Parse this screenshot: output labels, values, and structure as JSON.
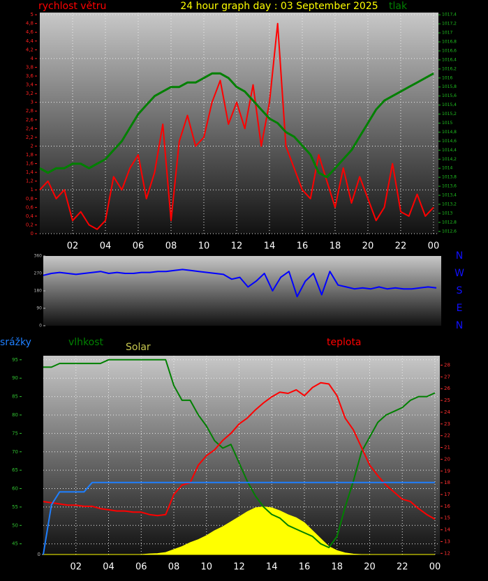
{
  "chart_data": [
    {
      "type": "line",
      "title": "24 hour graph day : 03 September 2025",
      "grid": true,
      "x": [
        0,
        0.5,
        1,
        1.5,
        2,
        2.5,
        3,
        3.5,
        4,
        4.5,
        5,
        5.5,
        6,
        6.5,
        7,
        7.5,
        8,
        8.5,
        9,
        9.5,
        10,
        10.5,
        11,
        11.5,
        12,
        12.5,
        13,
        13.5,
        14,
        14.5,
        15,
        15.5,
        16,
        16.5,
        17,
        17.5,
        18,
        18.5,
        19,
        19.5,
        20,
        20.5,
        21,
        21.5,
        22,
        22.5,
        23,
        23.5,
        24
      ],
      "xlim": [
        0,
        24.3
      ],
      "xticks": [
        {
          "value": 2,
          "label": "02"
        },
        {
          "value": 4,
          "label": "04"
        },
        {
          "value": 6,
          "label": "06"
        },
        {
          "value": 8,
          "label": "08"
        },
        10,
        12,
        14,
        16,
        18,
        20,
        22,
        {
          "value": 24,
          "label": "00"
        }
      ],
      "ylim": [
        0,
        5.05
      ],
      "yticks": [
        0,
        {
          "value": 0.2,
          "label": "0,2"
        },
        {
          "value": 0.4,
          "label": "0,4"
        },
        {
          "value": 0.6,
          "label": "0,6"
        },
        {
          "value": 0.8,
          "label": "0,8"
        },
        1,
        {
          "value": 1.2,
          "label": "1,2"
        },
        {
          "value": 1.4,
          "label": "1,4"
        },
        {
          "value": 1.6,
          "label": "1,6"
        },
        {
          "value": 1.8,
          "label": "1,8"
        },
        2,
        {
          "value": 2.2,
          "label": "2,2"
        },
        {
          "value": 2.4,
          "label": "2,4"
        },
        {
          "value": 2.6,
          "label": "2,6"
        },
        {
          "value": 2.8,
          "label": "2,8"
        },
        3,
        {
          "value": 3.2,
          "label": "3,2"
        },
        {
          "value": 3.4,
          "label": "3,4"
        },
        {
          "value": 3.6,
          "label": "3,6"
        },
        {
          "value": 3.8,
          "label": "3,8"
        },
        4,
        {
          "value": 4.2,
          "label": "4,2"
        },
        {
          "value": 4.4,
          "label": "4,4"
        },
        {
          "value": 4.6,
          "label": "4,6"
        },
        {
          "value": 4.8,
          "label": "4,8"
        },
        5
      ],
      "y2lim": [
        1012.55,
        1017.45
      ],
      "y2ticks": [
        {
          "value": 1012.6,
          "label": "1012,6"
        },
        {
          "value": 1012.8,
          "label": "1012,8"
        },
        1013,
        {
          "value": 1013.2,
          "label": "1013,2"
        },
        {
          "value": 1013.4,
          "label": "1013,4"
        },
        {
          "value": 1013.6,
          "label": "1013,6"
        },
        {
          "value": 1013.8,
          "label": "1013,8"
        },
        1014,
        {
          "value": 1014.2,
          "label": "1014,2"
        },
        {
          "value": 1014.4,
          "label": "1014,4"
        },
        {
          "value": 1014.6,
          "label": "1014,6"
        },
        {
          "value": 1014.8,
          "label": "1014,8"
        },
        1015,
        {
          "value": 1015.2,
          "label": "1015,2"
        },
        {
          "value": 1015.4,
          "label": "1015,4"
        },
        {
          "value": 1015.6,
          "label": "1015,6"
        },
        {
          "value": 1015.8,
          "label": "1015,8"
        },
        1016,
        {
          "value": 1016.2,
          "label": "1016,2"
        },
        {
          "value": 1016.4,
          "label": "1016,4"
        },
        {
          "value": 1016.6,
          "label": "1016,6"
        },
        {
          "value": 1016.8,
          "label": "1016,8"
        },
        1017,
        {
          "value": 1017.2,
          "label": "1017,2"
        },
        {
          "value": 1017.4,
          "label": "1017,4"
        }
      ],
      "series": [
        {
          "name": "rychlost větru",
          "color": "#ff0000",
          "values": [
            1.0,
            1.2,
            0.8,
            1.0,
            0.3,
            0.5,
            0.2,
            0.1,
            0.3,
            1.3,
            1.0,
            1.5,
            1.8,
            0.8,
            1.4,
            2.5,
            0.3,
            2.1,
            2.7,
            2.0,
            2.2,
            3.0,
            3.5,
            2.5,
            3.0,
            2.4,
            3.4,
            2.0,
            3.0,
            4.8,
            2.0,
            1.5,
            1.0,
            0.8,
            1.8,
            1.2,
            0.6,
            1.5,
            0.7,
            1.3,
            0.8,
            0.3,
            0.6,
            1.6,
            0.5,
            0.4,
            0.9,
            0.4,
            0.6
          ]
        },
        {
          "name": "tlak",
          "color": "#008000",
          "axis": "y2",
          "values": [
            1014.0,
            1013.9,
            1014.0,
            1014.0,
            1014.1,
            1014.1,
            1014.0,
            1014.1,
            1014.2,
            1014.4,
            1014.6,
            1014.9,
            1015.2,
            1015.4,
            1015.6,
            1015.7,
            1015.8,
            1015.8,
            1015.9,
            1015.9,
            1016.0,
            1016.1,
            1016.1,
            1016.0,
            1015.8,
            1015.7,
            1015.5,
            1015.3,
            1015.1,
            1015.0,
            1014.8,
            1014.7,
            1014.5,
            1014.3,
            1013.9,
            1013.8,
            1014.0,
            1014.2,
            1014.4,
            1014.7,
            1015.0,
            1015.3,
            1015.5,
            1015.6,
            1015.7,
            1015.8,
            1015.9,
            1016.0,
            1016.1
          ]
        }
      ]
    },
    {
      "type": "line",
      "grid": false,
      "x": [
        0,
        0.5,
        1,
        1.5,
        2,
        2.5,
        3,
        3.5,
        4,
        4.5,
        5,
        5.5,
        6,
        6.5,
        7,
        7.5,
        8,
        8.5,
        9,
        9.5,
        10,
        10.5,
        11,
        11.5,
        12,
        12.5,
        13,
        13.5,
        14,
        14.5,
        15,
        15.5,
        16,
        16.5,
        17,
        17.5,
        18,
        18.5,
        19,
        19.5,
        20,
        20.5,
        21,
        21.5,
        22,
        22.5,
        23,
        23.5,
        24
      ],
      "xlim": [
        0,
        24.3
      ],
      "ylim": [
        0,
        360
      ],
      "yticks": [
        0,
        90,
        180,
        270,
        360
      ],
      "compass": [
        "N",
        "W",
        "S",
        "E",
        "N"
      ],
      "series": [
        {
          "color": "#0000ff",
          "values": [
            260,
            270,
            275,
            270,
            265,
            270,
            275,
            280,
            270,
            275,
            270,
            270,
            275,
            275,
            280,
            280,
            285,
            290,
            285,
            280,
            275,
            270,
            265,
            240,
            250,
            200,
            230,
            270,
            180,
            250,
            280,
            150,
            230,
            270,
            160,
            280,
            210,
            200,
            190,
            195,
            190,
            200,
            190,
            195,
            190,
            190,
            195,
            200,
            195
          ]
        }
      ]
    },
    {
      "type": "line",
      "grid": true,
      "x": [
        0,
        0.5,
        1,
        1.5,
        2,
        2.5,
        3,
        3.5,
        4,
        4.5,
        5,
        5.5,
        6,
        6.5,
        7,
        7.5,
        8,
        8.5,
        9,
        9.5,
        10,
        10.5,
        11,
        11.5,
        12,
        12.5,
        13,
        13.5,
        14,
        14.5,
        15,
        15.5,
        16,
        16.5,
        17,
        17.5,
        18,
        18.5,
        19,
        19.5,
        20,
        20.5,
        21,
        21.5,
        22,
        22.5,
        23,
        23.5,
        24
      ],
      "xlim": [
        0,
        24.3
      ],
      "xticks": [
        {
          "value": 2,
          "label": "02"
        },
        {
          "value": 4,
          "label": "04"
        },
        {
          "value": 6,
          "label": "06"
        },
        {
          "value": 8,
          "label": "08"
        },
        10,
        12,
        14,
        16,
        18,
        20,
        22,
        {
          "value": 24,
          "label": "00"
        }
      ],
      "ylim": [
        42.1,
        96.1
      ],
      "yticks": [
        45,
        50,
        55,
        60,
        65,
        70,
        75,
        80,
        85,
        90,
        95
      ],
      "y2lim": [
        11.9,
        28.8
      ],
      "y2ticks": [
        12,
        13,
        14,
        15,
        16,
        17,
        18,
        19,
        20,
        21,
        22,
        23,
        24,
        25,
        26,
        27,
        28
      ],
      "y3lim": [
        0,
        4
      ],
      "y3ticks": [
        0
      ],
      "y4lim": [
        0,
        1000
      ],
      "series": [
        {
          "name": "Solar",
          "color": "#ffff00",
          "axis": "y4",
          "style": "area",
          "values": [
            0,
            0,
            0,
            0,
            0,
            0,
            0,
            0,
            0,
            0,
            0,
            0,
            0,
            3,
            5,
            10,
            25,
            40,
            60,
            75,
            95,
            120,
            140,
            165,
            190,
            215,
            235,
            240,
            235,
            220,
            200,
            185,
            160,
            120,
            80,
            40,
            20,
            8,
            2,
            0,
            0,
            0,
            0,
            0,
            0,
            0,
            0,
            0,
            0
          ]
        },
        {
          "name": "vlhkost",
          "color": "#008000",
          "values": [
            93,
            93,
            94,
            94,
            94,
            94,
            94,
            94,
            95,
            95,
            95,
            95,
            95,
            95,
            95,
            95,
            88,
            84,
            84,
            80,
            77,
            73,
            71,
            72,
            67,
            62,
            58,
            55,
            53,
            52,
            50,
            49,
            48,
            47,
            45,
            44,
            47,
            55,
            62,
            70,
            74,
            78,
            80,
            81,
            82,
            84,
            85,
            85,
            86
          ]
        },
        {
          "name": "teplota",
          "color": "#ff0000",
          "axis": "y2",
          "values": [
            16.4,
            16.3,
            16.2,
            16.1,
            16.1,
            16.0,
            16.0,
            15.8,
            15.7,
            15.6,
            15.6,
            15.5,
            15.5,
            15.3,
            15.2,
            15.3,
            17.0,
            17.8,
            18.0,
            19.5,
            20.3,
            20.8,
            21.6,
            22.2,
            23.0,
            23.5,
            24.2,
            24.8,
            25.3,
            25.7,
            25.6,
            25.9,
            25.4,
            26.1,
            26.5,
            26.4,
            25.4,
            23.5,
            22.5,
            21.0,
            19.5,
            18.6,
            17.8,
            17.2,
            16.6,
            16.4,
            15.8,
            15.3,
            14.9
          ]
        },
        {
          "name": "srážky",
          "color": "#1e7fff",
          "axis": "y3",
          "values": [
            0,
            1.0,
            1.26,
            1.26,
            1.26,
            1.26,
            1.45,
            1.45,
            1.45,
            1.45,
            1.45,
            1.45,
            1.45,
            1.45,
            1.45,
            1.45,
            1.45,
            1.45,
            1.45,
            1.45,
            1.45,
            1.45,
            1.45,
            1.45,
            1.45,
            1.45,
            1.45,
            1.45,
            1.45,
            1.45,
            1.45,
            1.45,
            1.45,
            1.45,
            1.45,
            1.45,
            1.45,
            1.45,
            1.45,
            1.45,
            1.45,
            1.45,
            1.45,
            1.45,
            1.45,
            1.45,
            1.45,
            1.45,
            1.45
          ]
        }
      ]
    }
  ]
}
